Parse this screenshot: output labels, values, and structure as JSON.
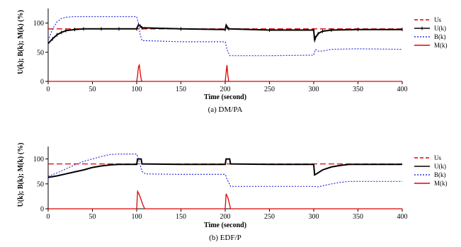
{
  "chart_data": [
    {
      "type": "line",
      "caption": "(a) DM/PA",
      "xlabel": "Time (second)",
      "ylabel": "U(k); B(k); M(k) (%)",
      "xlim": [
        0,
        400
      ],
      "ylim": [
        0,
        125
      ],
      "xticks": [
        "0",
        "50",
        "100",
        "150",
        "200",
        "250",
        "300",
        "350",
        "400"
      ],
      "yticks": [
        "0",
        "50",
        "100"
      ],
      "legend_placement": "right",
      "series": [
        {
          "name": "Us",
          "color": "#e00000",
          "style": "dashed",
          "x": [
            0,
            400
          ],
          "y": [
            90,
            90
          ]
        },
        {
          "name": "U(k)",
          "color": "#000000",
          "style": "solid-markers",
          "x": [
            0,
            5,
            10,
            15,
            20,
            30,
            40,
            60,
            80,
            100,
            102,
            104,
            106,
            150,
            200,
            201,
            202,
            204,
            250,
            300,
            301,
            302,
            305,
            310,
            320,
            350,
            400
          ],
          "y": [
            65,
            73,
            80,
            84,
            87,
            89,
            90,
            90,
            90,
            90,
            97,
            95,
            92,
            90,
            89,
            96,
            94,
            90,
            88,
            88,
            70,
            75,
            82,
            86,
            88,
            89,
            89
          ]
        },
        {
          "name": "B(k)",
          "color": "#3030e0",
          "style": "dotted",
          "x": [
            0,
            5,
            10,
            15,
            20,
            30,
            100,
            102,
            104,
            106,
            150,
            200,
            202,
            205,
            250,
            300,
            302,
            305,
            310,
            320,
            350,
            400
          ],
          "y": [
            70,
            90,
            102,
            108,
            110,
            111,
            111,
            100,
            80,
            70,
            68,
            68,
            55,
            44,
            44,
            45,
            55,
            52,
            52,
            55,
            56,
            55
          ]
        },
        {
          "name": "M(k)",
          "color": "#e00000",
          "style": "solid",
          "x": [
            0,
            100,
            101,
            102,
            103,
            104,
            105,
            106,
            200,
            201,
            202,
            203,
            204,
            400
          ],
          "y": [
            0,
            0,
            10,
            25,
            28,
            15,
            4,
            0,
            0,
            15,
            28,
            10,
            0,
            0
          ]
        }
      ]
    },
    {
      "type": "line",
      "caption": "(b) EDF/P",
      "xlabel": "Time (second)",
      "ylabel": "U(k); B(k); M(k) (%)",
      "xlim": [
        0,
        400
      ],
      "ylim": [
        0,
        125
      ],
      "xticks": [
        "0",
        "50",
        "100",
        "150",
        "200",
        "250",
        "300",
        "350",
        "400"
      ],
      "yticks": [
        "0",
        "50",
        "100"
      ],
      "legend_placement": "right",
      "series": [
        {
          "name": "Us",
          "color": "#e00000",
          "style": "dashed",
          "x": [
            0,
            400
          ],
          "y": [
            90,
            90
          ]
        },
        {
          "name": "U(k)",
          "color": "#000000",
          "style": "solid",
          "x": [
            0,
            10,
            20,
            30,
            40,
            50,
            60,
            70,
            80,
            100,
            101,
            105,
            106,
            150,
            200,
            201,
            205,
            206,
            250,
            300,
            301,
            303,
            310,
            320,
            330,
            340,
            350,
            400
          ],
          "y": [
            63,
            66,
            70,
            74,
            78,
            83,
            86,
            88,
            89,
            89,
            100,
            100,
            90,
            89,
            89,
            100,
            100,
            90,
            89,
            89,
            68,
            70,
            78,
            84,
            87,
            89,
            89,
            89
          ]
        },
        {
          "name": "B(k)",
          "color": "#3030e0",
          "style": "dotted",
          "x": [
            0,
            10,
            20,
            30,
            40,
            50,
            60,
            70,
            80,
            100,
            102,
            106,
            110,
            150,
            200,
            202,
            206,
            250,
            300,
            305,
            310,
            320,
            330,
            340,
            400
          ],
          "y": [
            65,
            72,
            80,
            88,
            95,
            100,
            105,
            109,
            110,
            110,
            100,
            75,
            70,
            69,
            69,
            60,
            45,
            45,
            45,
            44,
            46,
            50,
            53,
            55,
            55
          ]
        },
        {
          "name": "M(k)",
          "color": "#e00000",
          "style": "solid",
          "x": [
            0,
            100,
            101,
            103,
            105,
            107,
            109,
            200,
            201,
            203,
            205,
            206,
            400
          ],
          "y": [
            0,
            0,
            35,
            28,
            18,
            8,
            0,
            0,
            30,
            22,
            8,
            0,
            0
          ]
        }
      ]
    }
  ]
}
